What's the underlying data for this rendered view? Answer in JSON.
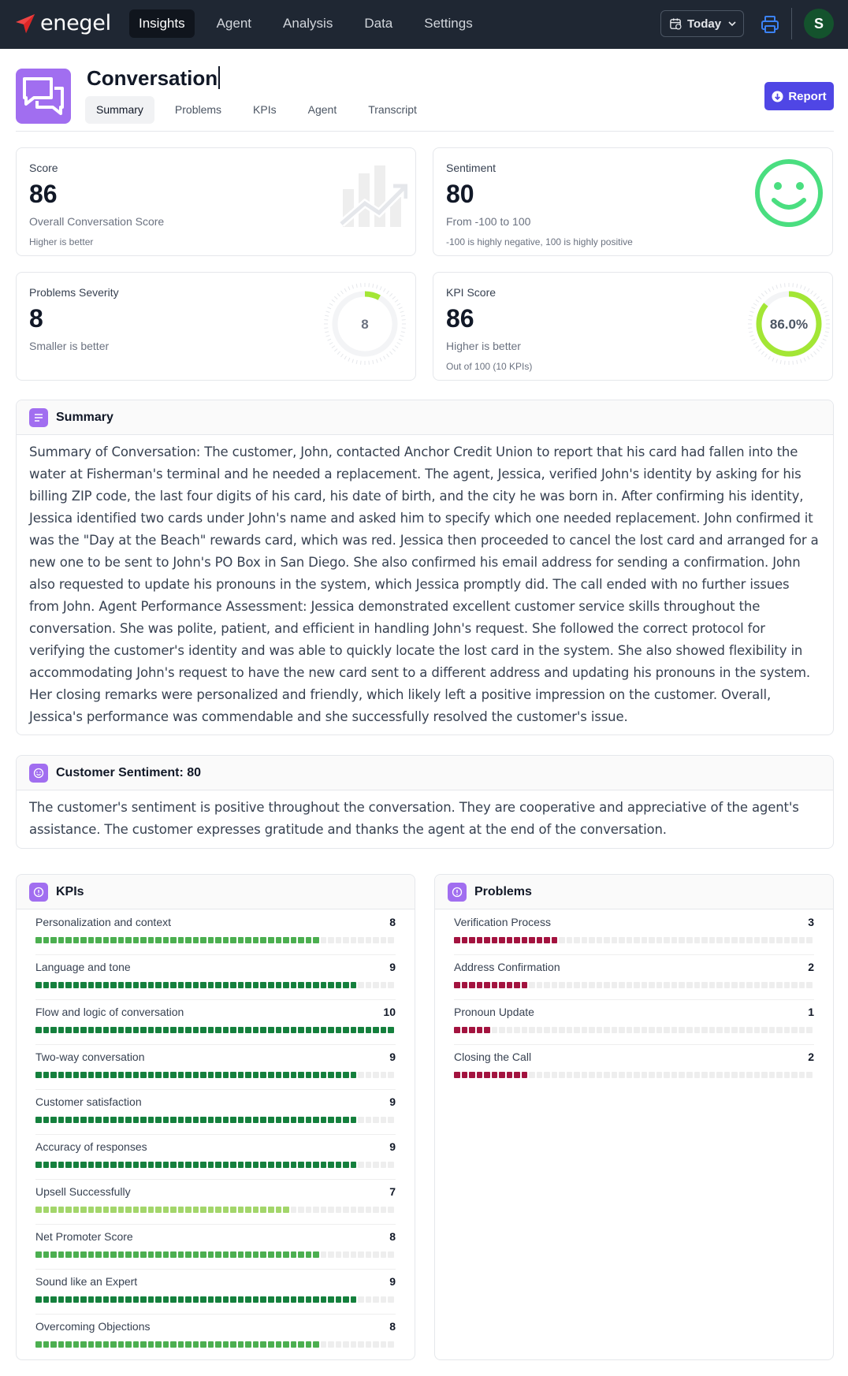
{
  "app": {
    "name": "enegel"
  },
  "nav": {
    "links": [
      {
        "label": "Insights",
        "active": true
      },
      {
        "label": "Agent",
        "active": false
      },
      {
        "label": "Analysis",
        "active": false
      },
      {
        "label": "Data",
        "active": false
      },
      {
        "label": "Settings",
        "active": false
      }
    ],
    "date_label": "Today",
    "avatar_initial": "S"
  },
  "header": {
    "title": "Conversation",
    "tabs": [
      {
        "label": "Summary",
        "active": true
      },
      {
        "label": "Problems",
        "active": false
      },
      {
        "label": "KPIs",
        "active": false
      },
      {
        "label": "Agent",
        "active": false
      },
      {
        "label": "Transcript",
        "active": false
      }
    ],
    "report_label": "Report"
  },
  "stats": {
    "score": {
      "label": "Score",
      "value": "86",
      "sub": "Overall Conversation Score",
      "note": "Higher is better"
    },
    "sentiment": {
      "label": "Sentiment",
      "value": "80",
      "sub": "From -100 to 100",
      "note": "-100 is highly negative, 100 is highly positive"
    },
    "severity": {
      "label": "Problems Severity",
      "value": "8",
      "sub": "Smaller is better",
      "gauge_text": "8",
      "gauge_fraction": 0.08
    },
    "kpi": {
      "label": "KPI Score",
      "value": "86",
      "sub": "Higher is better",
      "note": "Out of 100 (10 KPIs)",
      "gauge_text": "86.0%",
      "gauge_fraction": 0.86
    }
  },
  "summary": {
    "title": "Summary",
    "text": "Summary of Conversation: The customer, John, contacted Anchor Credit Union to report that his card had fallen into the water at Fisherman's terminal and he needed a replacement. The agent, Jessica, verified John's identity by asking for his billing ZIP code, the last four digits of his card, his date of birth, and the city he was born in. After confirming his identity, Jessica identified two cards under John's name and asked him to specify which one needed replacement. John confirmed it was the \"Day at the Beach\" rewards card, which was red. Jessica then proceeded to cancel the lost card and arranged for a new one to be sent to John's PO Box in San Diego. She also confirmed his email address for sending a confirmation. John also requested to update his pronouns in the system, which Jessica promptly did. The call ended with no further issues from John. Agent Performance Assessment: Jessica demonstrated excellent customer service skills throughout the conversation. She was polite, patient, and efficient in handling John's request. She followed the correct protocol for verifying the customer's identity and was able to quickly locate the lost card in the system. She also showed flexibility in accommodating John's request to have the new card sent to a different address and updating his pronouns in the system. Her closing remarks were personalized and friendly, which likely left a positive impression on the customer. Overall, Jessica's performance was commendable and she successfully resolved the customer's issue."
  },
  "sentiment_section": {
    "title": "Customer Sentiment: 80",
    "text": "The customer's sentiment is positive throughout the conversation. They are cooperative and appreciative of the agent's assistance. The customer expresses gratitude and thanks the agent at the end of the conversation."
  },
  "kpis": {
    "title": "KPIs",
    "max": 10,
    "items": [
      {
        "label": "Personalization and context",
        "value": 8
      },
      {
        "label": "Language and tone",
        "value": 9
      },
      {
        "label": "Flow and logic of conversation",
        "value": 10
      },
      {
        "label": "Two-way conversation",
        "value": 9
      },
      {
        "label": "Customer satisfaction",
        "value": 9
      },
      {
        "label": "Accuracy of responses",
        "value": 9
      },
      {
        "label": "Upsell Successfully",
        "value": 7
      },
      {
        "label": "Net Promoter Score",
        "value": 8
      },
      {
        "label": "Sound like an Expert",
        "value": 9
      },
      {
        "label": "Overcoming Objections",
        "value": 8
      }
    ]
  },
  "problems": {
    "title": "Problems",
    "max": 10,
    "items": [
      {
        "label": "Verification Process",
        "value": 3
      },
      {
        "label": "Address Confirmation",
        "value": 2
      },
      {
        "label": "Pronoun Update",
        "value": 1
      },
      {
        "label": "Closing the Call",
        "value": 2
      }
    ]
  },
  "colors": {
    "navbar": "#1f2733",
    "accent_purple": "#a16ef0",
    "report_button": "#4f46e5",
    "kpi_bar": "#15803d",
    "kpi_bar_light": "#a3d66b",
    "problem_bar": "#a3133f",
    "smiley": "#4ade80",
    "gauge_green": "#a3e635"
  }
}
